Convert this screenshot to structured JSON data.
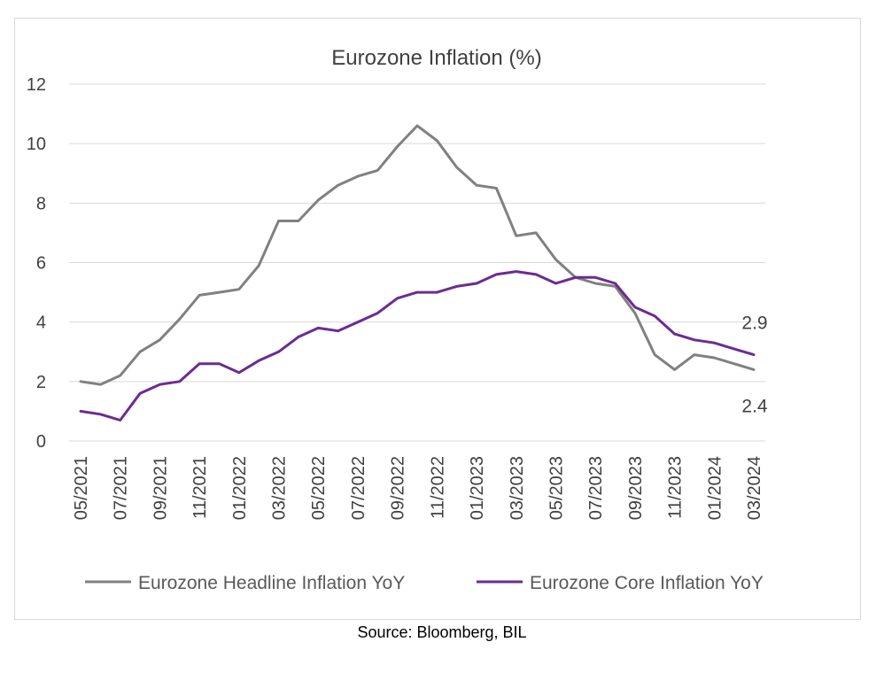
{
  "chart_data": {
    "type": "line",
    "title": "Eurozone Inflation (%)",
    "xlabel": "",
    "ylabel": "",
    "ylim": [
      0,
      12
    ],
    "yticks": [
      "0",
      "2",
      "4",
      "6",
      "8",
      "10",
      "12"
    ],
    "grid": true,
    "legend_position": "bottom",
    "x": [
      "05/2021",
      "06/2021",
      "07/2021",
      "08/2021",
      "09/2021",
      "10/2021",
      "11/2021",
      "12/2021",
      "01/2022",
      "02/2022",
      "03/2022",
      "04/2022",
      "05/2022",
      "06/2022",
      "07/2022",
      "08/2022",
      "09/2022",
      "10/2022",
      "11/2022",
      "12/2022",
      "01/2023",
      "02/2023",
      "03/2023",
      "04/2023",
      "05/2023",
      "06/2023",
      "07/2023",
      "08/2023",
      "09/2023",
      "10/2023",
      "11/2023",
      "12/2023",
      "01/2024",
      "02/2024",
      "03/2024"
    ],
    "x_tick_labels": [
      "05/2021",
      "07/2021",
      "09/2021",
      "11/2021",
      "01/2022",
      "03/2022",
      "05/2022",
      "07/2022",
      "09/2022",
      "11/2022",
      "01/2023",
      "03/2023",
      "05/2023",
      "07/2023",
      "09/2023",
      "11/2023",
      "01/2024",
      "03/2024"
    ],
    "series": [
      {
        "name": "Eurozone Headline Inflation YoY",
        "color": "#808080",
        "values": [
          2.0,
          1.9,
          2.2,
          3.0,
          3.4,
          4.1,
          4.9,
          5.0,
          5.1,
          5.9,
          7.4,
          7.4,
          8.1,
          8.6,
          8.9,
          9.1,
          9.9,
          10.6,
          10.1,
          9.2,
          8.6,
          8.5,
          6.9,
          7.0,
          6.1,
          5.5,
          5.3,
          5.2,
          4.3,
          2.9,
          2.4,
          2.9,
          2.8,
          2.6,
          2.4
        ]
      },
      {
        "name": "Eurozone Core Inflation YoY",
        "color": "#6b2c91",
        "values": [
          1.0,
          0.9,
          0.7,
          1.6,
          1.9,
          2.0,
          2.6,
          2.6,
          2.3,
          2.7,
          3.0,
          3.5,
          3.8,
          3.7,
          4.0,
          4.3,
          4.8,
          5.0,
          5.0,
          5.2,
          5.3,
          5.6,
          5.7,
          5.6,
          5.3,
          5.5,
          5.5,
          5.3,
          4.5,
          4.2,
          3.6,
          3.4,
          3.3,
          3.1,
          2.9
        ]
      }
    ],
    "annotations": [
      {
        "text": "2.9",
        "series": "Eurozone Core Inflation YoY",
        "at": "03/2024"
      },
      {
        "text": "2.4",
        "series": "Eurozone Headline Inflation YoY",
        "at": "03/2024"
      }
    ],
    "source": "Source: Bloomberg, BIL"
  }
}
